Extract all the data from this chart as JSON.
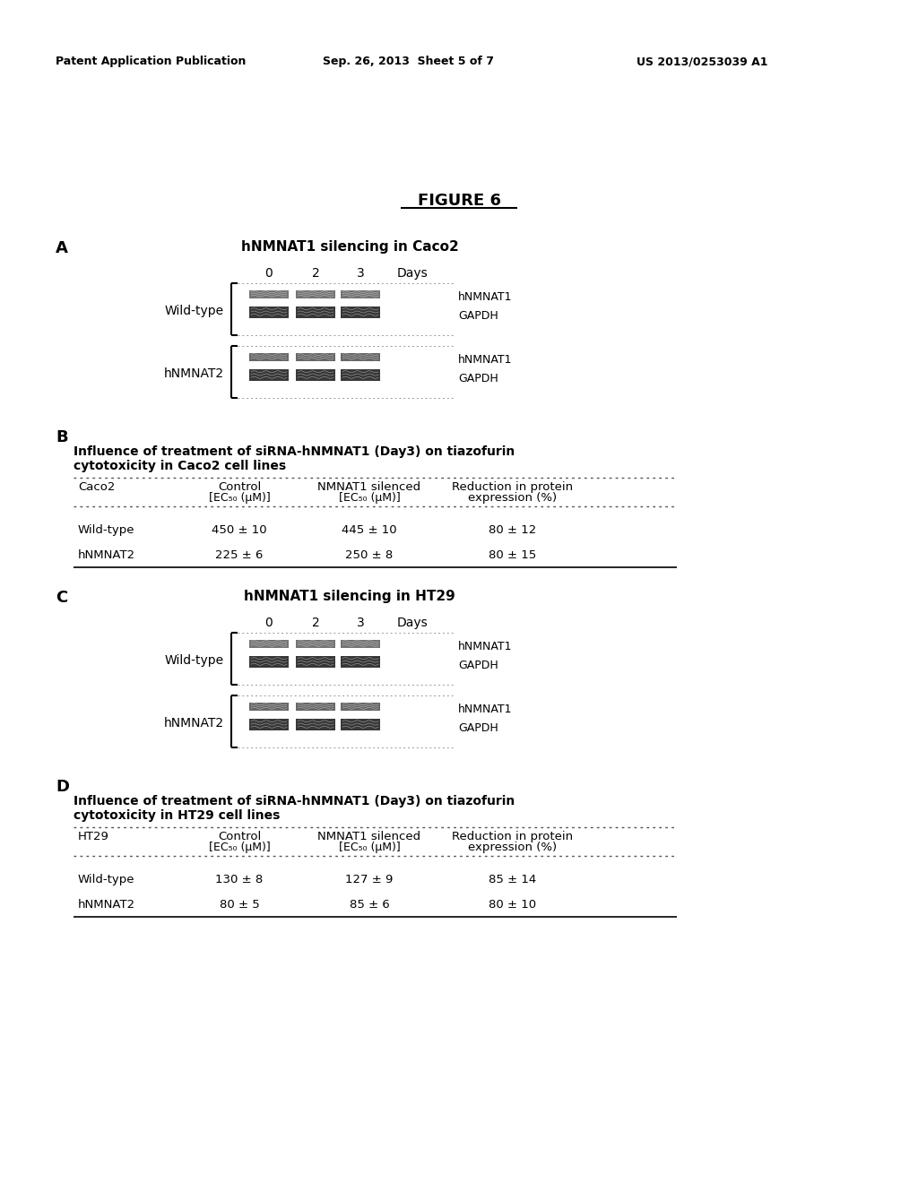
{
  "bg_color": "#ffffff",
  "header_left": "Patent Application Publication",
  "header_center": "Sep. 26, 2013  Sheet 5 of 7",
  "header_right": "US 2013/0253039 A1",
  "panel_A_label": "A",
  "panel_A_title": "hNMNAT1 silencing in Caco2",
  "panel_A_days": [
    "0",
    "2",
    "3",
    "Days"
  ],
  "panel_B_label": "B",
  "panel_B_title_line1": "Influence of treatment of siRNA-hNMNAT1 (Day3) on tiazofurin",
  "panel_B_title_line2": "cytotoxicity in Caco2 cell lines",
  "panel_B_rows": [
    [
      "Wild-type",
      "450 ± 10",
      "445 ± 10",
      "80 ± 12"
    ],
    [
      "hNMNAT2",
      "225 ± 6",
      "250 ± 8",
      "80 ± 15"
    ]
  ],
  "panel_C_label": "C",
  "panel_C_title": "hNMNAT1 silencing in HT29",
  "panel_C_days": [
    "0",
    "2",
    "3",
    "Days"
  ],
  "panel_D_label": "D",
  "panel_D_title_line1": "Influence of treatment of siRNA-hNMNAT1 (Day3) on tiazofurin",
  "panel_D_title_line2": "cytotoxicity in HT29 cell lines",
  "panel_D_rows": [
    [
      "Wild-type",
      "130 ± 8",
      "127 ± 9",
      "85 ± 14"
    ],
    [
      "hNMNAT2",
      "80 ± 5",
      "85 ± 6",
      "80 ± 10"
    ]
  ]
}
